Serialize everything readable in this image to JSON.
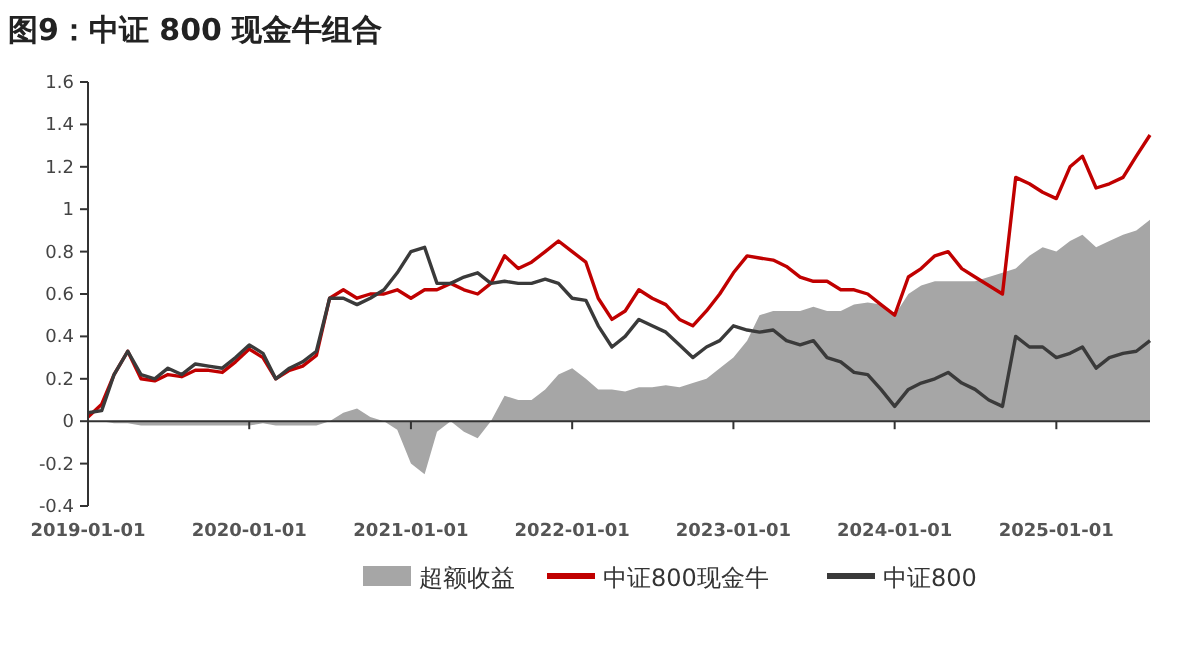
{
  "chart_data": {
    "type": "line",
    "title": "图9：中证 800 现金牛组合",
    "x": [
      "2019-01",
      "2019-02",
      "2019-03",
      "2019-04",
      "2019-05",
      "2019-06",
      "2019-07",
      "2019-08",
      "2019-09",
      "2019-10",
      "2019-11",
      "2019-12",
      "2020-01",
      "2020-02",
      "2020-03",
      "2020-04",
      "2020-05",
      "2020-06",
      "2020-07",
      "2020-08",
      "2020-09",
      "2020-10",
      "2020-11",
      "2020-12",
      "2021-01",
      "2021-02",
      "2021-03",
      "2021-04",
      "2021-05",
      "2021-06",
      "2021-07",
      "2021-08",
      "2021-09",
      "2021-10",
      "2021-11",
      "2021-12",
      "2022-01",
      "2022-02",
      "2022-03",
      "2022-04",
      "2022-05",
      "2022-06",
      "2022-07",
      "2022-08",
      "2022-09",
      "2022-10",
      "2022-11",
      "2022-12",
      "2023-01",
      "2023-02",
      "2023-03",
      "2023-04",
      "2023-05",
      "2023-06",
      "2023-07",
      "2023-08",
      "2023-09",
      "2023-10",
      "2023-11",
      "2023-12",
      "2024-01",
      "2024-02",
      "2024-03",
      "2024-04",
      "2024-05",
      "2024-06",
      "2024-07",
      "2024-08",
      "2024-09",
      "2024-10",
      "2024-11",
      "2024-12",
      "2025-01",
      "2025-02",
      "2025-03",
      "2025-04",
      "2025-05",
      "2025-06",
      "2025-07",
      "2025-08"
    ],
    "series": [
      {
        "name": "超额收益",
        "type": "area",
        "color": "#a6a6a6",
        "values": [
          0,
          0,
          -0.01,
          -0.01,
          -0.02,
          -0.02,
          -0.02,
          -0.02,
          -0.02,
          -0.02,
          -0.02,
          -0.02,
          -0.02,
          -0.01,
          -0.02,
          -0.02,
          -0.02,
          -0.02,
          0,
          0.04,
          0.06,
          0.02,
          0,
          -0.04,
          -0.2,
          -0.25,
          -0.05,
          0,
          -0.05,
          -0.08,
          0,
          0.12,
          0.1,
          0.1,
          0.15,
          0.22,
          0.25,
          0.2,
          0.15,
          0.15,
          0.14,
          0.16,
          0.16,
          0.17,
          0.16,
          0.18,
          0.2,
          0.25,
          0.3,
          0.38,
          0.5,
          0.52,
          0.52,
          0.52,
          0.54,
          0.52,
          0.52,
          0.55,
          0.56,
          0.55,
          0.5,
          0.6,
          0.64,
          0.66,
          0.66,
          0.66,
          0.66,
          0.68,
          0.7,
          0.72,
          0.78,
          0.82,
          0.8,
          0.85,
          0.88,
          0.82,
          0.85,
          0.88,
          0.9,
          0.95
        ]
      },
      {
        "name": "中证800现金牛",
        "type": "line",
        "color": "#c00000",
        "values": [
          0.02,
          0.08,
          0.22,
          0.33,
          0.2,
          0.19,
          0.22,
          0.21,
          0.24,
          0.24,
          0.23,
          0.28,
          0.34,
          0.3,
          0.2,
          0.24,
          0.26,
          0.31,
          0.58,
          0.62,
          0.58,
          0.6,
          0.6,
          0.62,
          0.58,
          0.62,
          0.62,
          0.65,
          0.62,
          0.6,
          0.65,
          0.78,
          0.72,
          0.75,
          0.8,
          0.85,
          0.8,
          0.75,
          0.58,
          0.48,
          0.52,
          0.62,
          0.58,
          0.55,
          0.48,
          0.45,
          0.52,
          0.6,
          0.7,
          0.78,
          0.77,
          0.76,
          0.73,
          0.68,
          0.66,
          0.66,
          0.62,
          0.62,
          0.6,
          0.55,
          0.5,
          0.68,
          0.72,
          0.78,
          0.8,
          0.72,
          0.68,
          0.64,
          0.6,
          1.15,
          1.12,
          1.08,
          1.05,
          1.2,
          1.25,
          1.1,
          1.12,
          1.15,
          1.25,
          1.35
        ]
      },
      {
        "name": "中证800",
        "type": "line",
        "color": "#3a3a3a",
        "values": [
          0.04,
          0.05,
          0.22,
          0.33,
          0.22,
          0.2,
          0.25,
          0.22,
          0.27,
          0.26,
          0.25,
          0.3,
          0.36,
          0.32,
          0.2,
          0.25,
          0.28,
          0.33,
          0.58,
          0.58,
          0.55,
          0.58,
          0.62,
          0.7,
          0.8,
          0.82,
          0.65,
          0.65,
          0.68,
          0.7,
          0.65,
          0.66,
          0.65,
          0.65,
          0.67,
          0.65,
          0.58,
          0.57,
          0.45,
          0.35,
          0.4,
          0.48,
          0.45,
          0.42,
          0.36,
          0.3,
          0.35,
          0.38,
          0.45,
          0.43,
          0.42,
          0.43,
          0.38,
          0.36,
          0.38,
          0.3,
          0.28,
          0.23,
          0.22,
          0.15,
          0.07,
          0.15,
          0.18,
          0.2,
          0.23,
          0.18,
          0.15,
          0.1,
          0.07,
          0.4,
          0.35,
          0.35,
          0.3,
          0.32,
          0.35,
          0.25,
          0.3,
          0.32,
          0.33,
          0.38
        ]
      }
    ],
    "xlim": [
      "2019-01-01",
      "2025-08-01"
    ],
    "xticks": [
      "2019-01-01",
      "2020-01-01",
      "2021-01-01",
      "2022-01-01",
      "2023-01-01",
      "2024-01-01",
      "2025-01-01"
    ],
    "ylim": [
      -0.4,
      1.6
    ],
    "yticks": [
      -0.4,
      -0.2,
      0,
      0.2,
      0.4,
      0.6,
      0.8,
      1,
      1.2,
      1.4,
      1.6
    ],
    "legend": "bottom"
  }
}
